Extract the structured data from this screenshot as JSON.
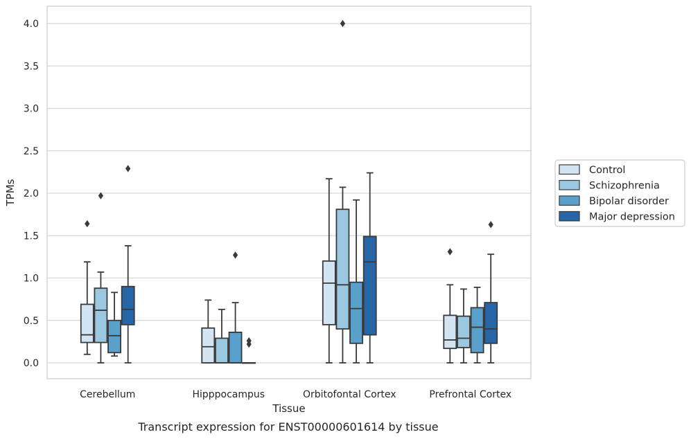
{
  "chart_data": {
    "type": "box",
    "xlabel": "Tissue",
    "ylabel": "TPMs",
    "caption": "Transcript expression for ENST00000601614 by tissue",
    "ylim": [
      -0.19,
      4.21
    ],
    "yticks": [
      "0.0",
      "0.5",
      "1.0",
      "1.5",
      "2.0",
      "2.5",
      "3.0",
      "3.5",
      "4.0"
    ],
    "grid": "horizontal",
    "legend_position": "right",
    "categories": [
      "Cerebellum",
      "Hipppocampus",
      "Orbitofontal Cortex",
      "Prefrontal Cortex"
    ],
    "series": [
      {
        "name": "Control",
        "color": "#d3e4f3",
        "boxes": [
          {
            "whislo": 0.1,
            "q1": 0.24,
            "med": 0.33,
            "q3": 0.69,
            "whishi": 1.19,
            "fliers": [
              1.64
            ]
          },
          {
            "whislo": 0.0,
            "q1": 0.0,
            "med": 0.19,
            "q3": 0.41,
            "whishi": 0.74,
            "fliers": []
          },
          {
            "whislo": 0.0,
            "q1": 0.45,
            "med": 0.94,
            "q3": 1.2,
            "whishi": 2.17,
            "fliers": []
          },
          {
            "whislo": 0.0,
            "q1": 0.17,
            "med": 0.27,
            "q3": 0.56,
            "whishi": 0.92,
            "fliers": [
              1.31
            ]
          }
        ]
      },
      {
        "name": "Schizophrenia",
        "color": "#9ac8e0",
        "boxes": [
          {
            "whislo": 0.0,
            "q1": 0.24,
            "med": 0.62,
            "q3": 0.88,
            "whishi": 1.07,
            "fliers": [
              1.97
            ]
          },
          {
            "whislo": 0.0,
            "q1": 0.0,
            "med": 0.0,
            "q3": 0.29,
            "whishi": 0.63,
            "fliers": []
          },
          {
            "whislo": 0.0,
            "q1": 0.4,
            "med": 0.92,
            "q3": 1.81,
            "whishi": 2.07,
            "fliers": [
              4.0
            ]
          },
          {
            "whislo": 0.0,
            "q1": 0.18,
            "med": 0.29,
            "q3": 0.55,
            "whishi": 0.87,
            "fliers": []
          }
        ]
      },
      {
        "name": "Bipolar disorder",
        "color": "#5aa0cd",
        "boxes": [
          {
            "whislo": 0.08,
            "q1": 0.12,
            "med": 0.32,
            "q3": 0.5,
            "whishi": 0.83,
            "fliers": []
          },
          {
            "whislo": 0.0,
            "q1": 0.0,
            "med": 0.0,
            "q3": 0.36,
            "whishi": 0.71,
            "fliers": [
              1.27
            ]
          },
          {
            "whislo": 0.0,
            "q1": 0.23,
            "med": 0.64,
            "q3": 0.95,
            "whishi": 1.92,
            "fliers": []
          },
          {
            "whislo": 0.0,
            "q1": 0.12,
            "med": 0.42,
            "q3": 0.65,
            "whishi": 0.89,
            "fliers": []
          }
        ]
      },
      {
        "name": "Major depression",
        "color": "#2666a6",
        "boxes": [
          {
            "whislo": 0.0,
            "q1": 0.45,
            "med": 0.63,
            "q3": 0.9,
            "whishi": 1.38,
            "fliers": [
              2.29
            ]
          },
          {
            "whislo": 0.0,
            "q1": 0.0,
            "med": 0.0,
            "q3": 0.0,
            "whishi": 0.0,
            "fliers": [
              0.22,
              0.26
            ]
          },
          {
            "whislo": 0.0,
            "q1": 0.33,
            "med": 1.19,
            "q3": 1.49,
            "whishi": 2.24,
            "fliers": []
          },
          {
            "whislo": 0.0,
            "q1": 0.23,
            "med": 0.4,
            "q3": 0.71,
            "whishi": 1.28,
            "fliers": [
              1.63
            ]
          }
        ]
      }
    ]
  }
}
